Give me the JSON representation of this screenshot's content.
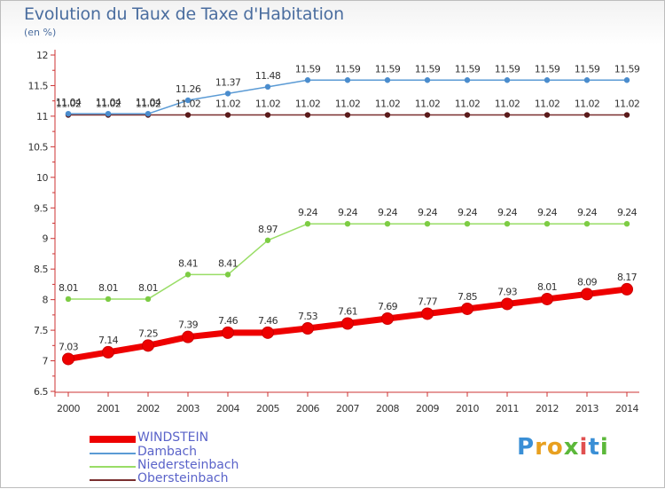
{
  "title": "Evolution du Taux de Taxe d'Habitation",
  "subtitle": "(en %)",
  "logo": {
    "text": "Proxiti",
    "letters": [
      {
        "ch": "P",
        "color": "#3a8fd6"
      },
      {
        "ch": "r",
        "color": "#e8a020"
      },
      {
        "ch": "o",
        "color": "#e8a020"
      },
      {
        "ch": "x",
        "color": "#5cb83a"
      },
      {
        "ch": "i",
        "color": "#e05050"
      },
      {
        "ch": "t",
        "color": "#3a8fd6"
      },
      {
        "ch": "i",
        "color": "#5cb83a"
      }
    ]
  },
  "chart_data": {
    "type": "line",
    "title": "Evolution du Taux de Taxe d'Habitation",
    "subtitle": "(en %)",
    "xlabel": "",
    "ylabel": "",
    "x": [
      "2000",
      "2001",
      "2002",
      "2003",
      "2004",
      "2005",
      "2006",
      "2007",
      "2008",
      "2009",
      "2010",
      "2011",
      "2012",
      "2013",
      "2014"
    ],
    "ylim": [
      6.5,
      12
    ],
    "yticks": [
      "6.5",
      "7",
      "7.5",
      "8",
      "8.5",
      "9",
      "9.5",
      "10",
      "10.5",
      "11",
      "11.5",
      "12"
    ],
    "grid": false,
    "legend_position": "bottom-left",
    "series": [
      {
        "name": "WINDSTEIN",
        "color": "#ee0000",
        "values": [
          7.03,
          7.14,
          7.25,
          7.39,
          7.46,
          7.46,
          7.53,
          7.61,
          7.69,
          7.77,
          7.85,
          7.93,
          8.01,
          8.09,
          8.17
        ],
        "labels": [
          "7.03",
          "7.14",
          "7.25",
          "7.39",
          "7.46",
          "7.46",
          "7.53",
          "7.61",
          "7.69",
          "7.77",
          "7.85",
          "7.93",
          "8.01",
          "8.09",
          "8.17"
        ]
      },
      {
        "name": "Dambach",
        "color": "#5b9bd5",
        "values": [
          11.04,
          11.04,
          11.04,
          11.26,
          11.37,
          11.48,
          11.59,
          11.59,
          11.59,
          11.59,
          11.59,
          11.59,
          11.59,
          11.59,
          11.59
        ],
        "labels": [
          "11.04",
          "11.04",
          "11.04",
          "11.26",
          "11.37",
          "11.48",
          "11.59",
          "11.59",
          "11.59",
          "11.59",
          "11.59",
          "11.59",
          "11.59",
          "11.59",
          "11.59"
        ]
      },
      {
        "name": "Niedersteinbach",
        "color": "#99dd66",
        "values": [
          8.01,
          8.01,
          8.01,
          8.41,
          8.41,
          8.97,
          9.24,
          9.24,
          9.24,
          9.24,
          9.24,
          9.24,
          9.24,
          9.24,
          9.24
        ],
        "labels": [
          "8.01",
          "8.01",
          "8.01",
          "8.41",
          "8.41",
          "8.97",
          "9.24",
          "9.24",
          "9.24",
          "9.24",
          "9.24",
          "9.24",
          "9.24",
          "9.24",
          "9.24"
        ]
      },
      {
        "name": "Obersteinbach",
        "color": "#7a2f2f",
        "values": [
          11.02,
          11.02,
          11.02,
          11.02,
          11.02,
          11.02,
          11.02,
          11.02,
          11.02,
          11.02,
          11.02,
          11.02,
          11.02,
          11.02,
          11.02
        ],
        "labels": [
          "11.02",
          "11.02",
          "11.02",
          "11.02",
          "11.02",
          "11.02",
          "11.02",
          "11.02",
          "11.02",
          "11.02",
          "11.02",
          "11.02",
          "11.02",
          "11.02",
          "11.02"
        ]
      }
    ]
  }
}
